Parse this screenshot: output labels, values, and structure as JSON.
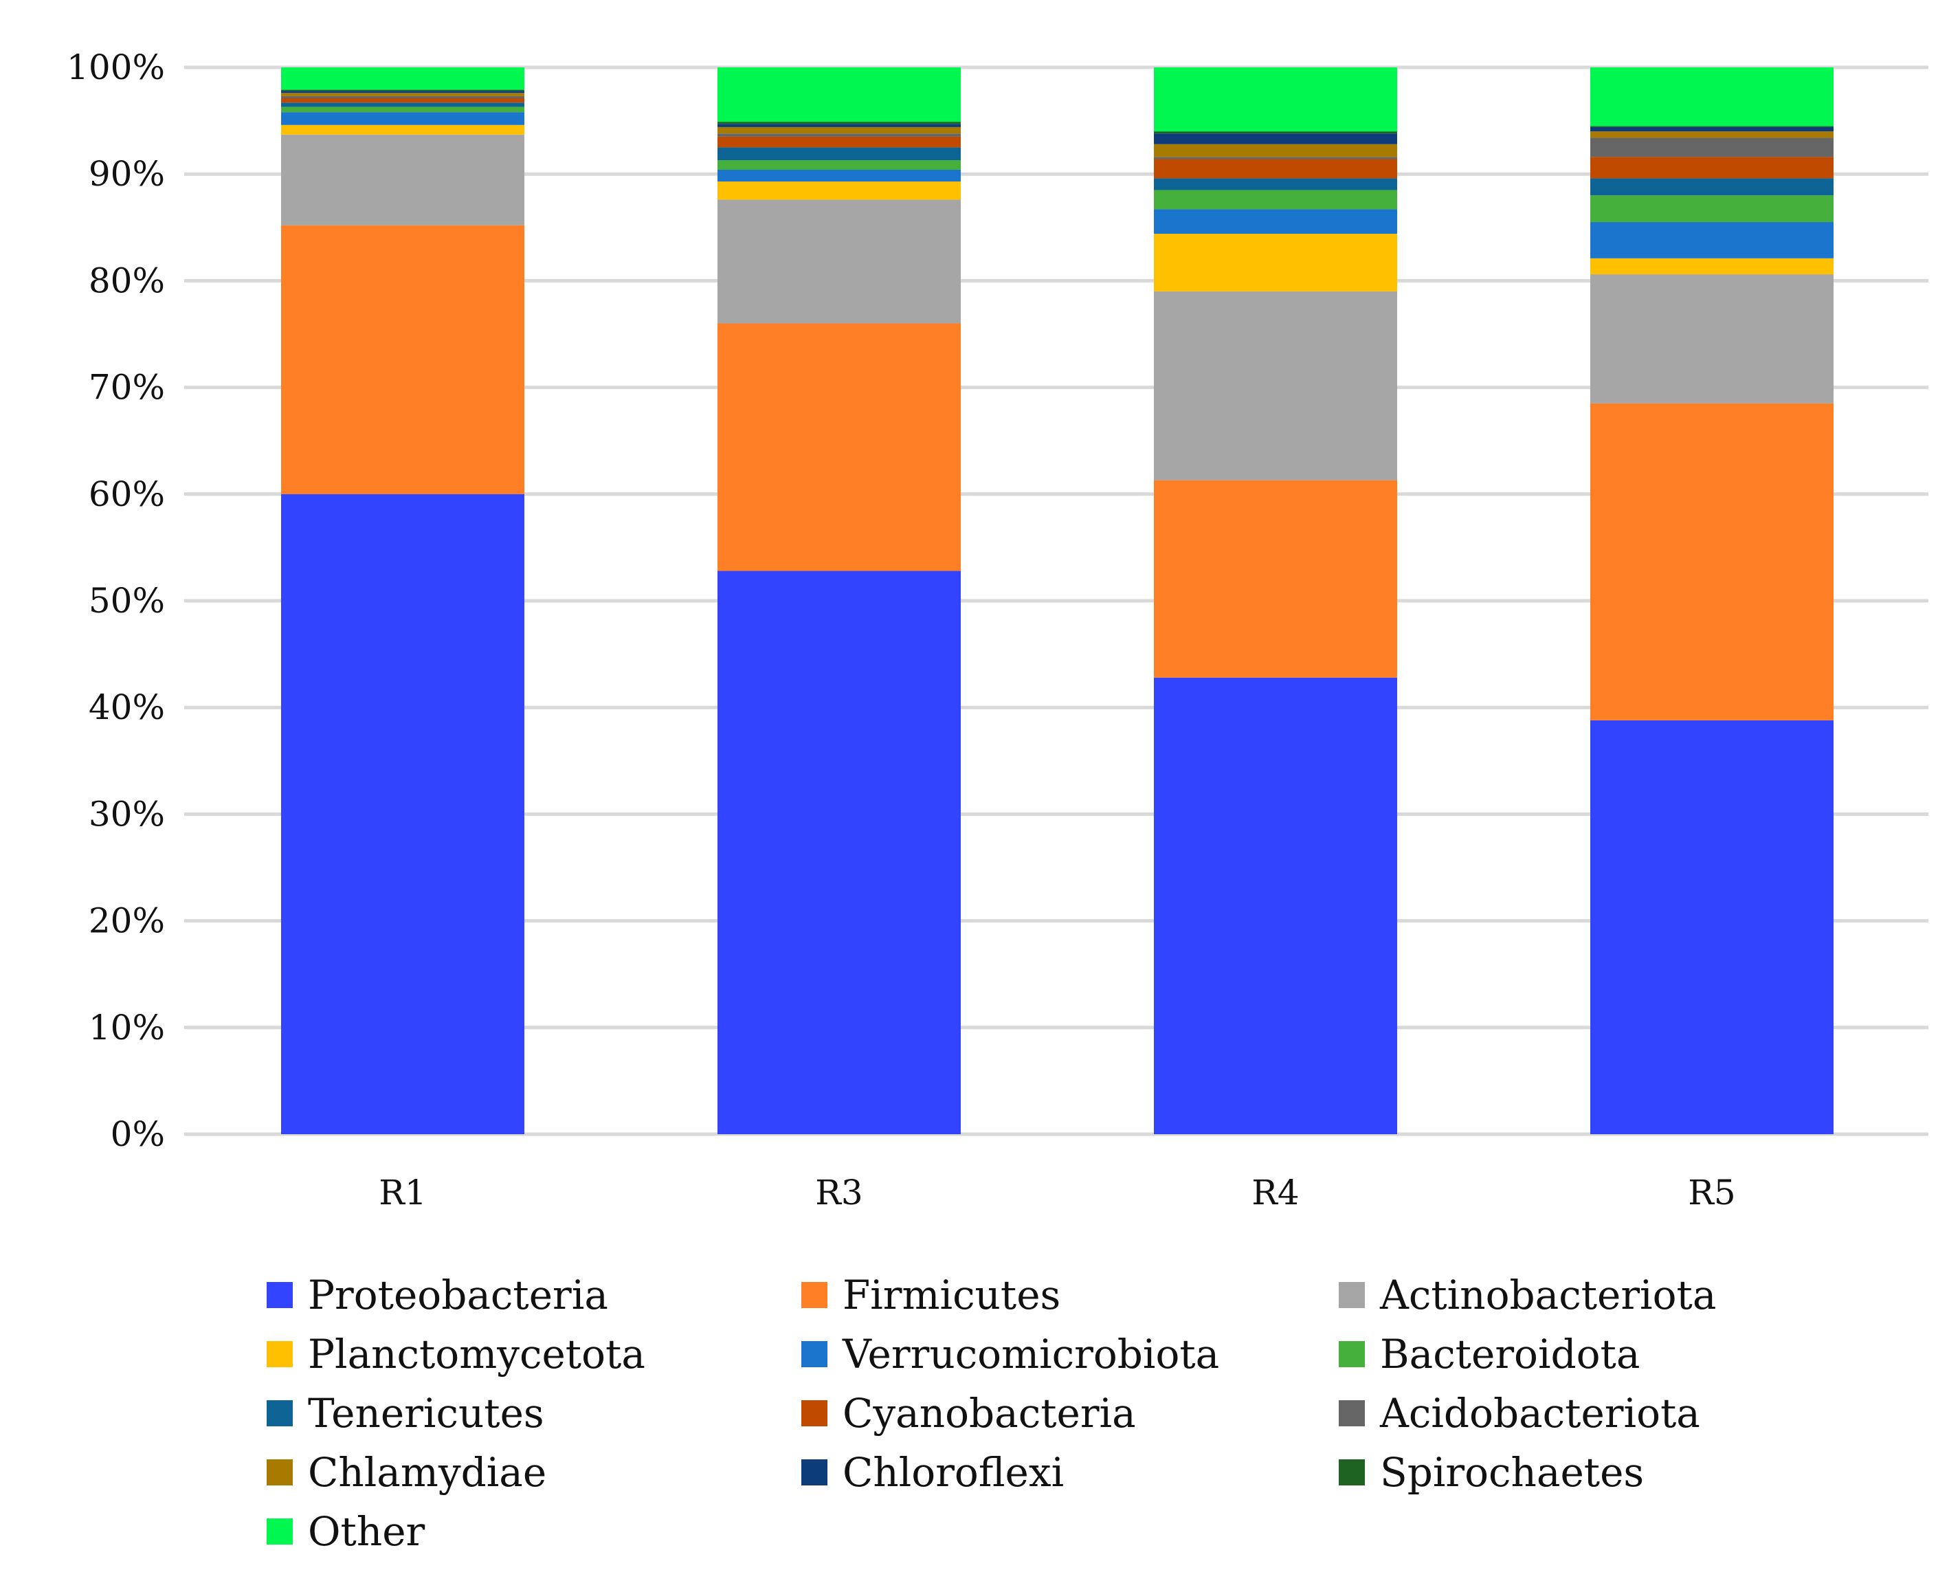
{
  "chart_data": {
    "type": "bar",
    "stacked": true,
    "title": "",
    "xlabel": "",
    "ylabel": "",
    "ylim": [
      0,
      100
    ],
    "yticks": [
      "0%",
      "10%",
      "20%",
      "30%",
      "40%",
      "50%",
      "60%",
      "70%",
      "80%",
      "90%",
      "100%"
    ],
    "yticks_values": [
      0,
      10,
      20,
      30,
      40,
      50,
      60,
      70,
      80,
      90,
      100
    ],
    "grid": true,
    "legend_position": "bottom",
    "categories": [
      "R1",
      "R3",
      "R4",
      "R5"
    ],
    "series": [
      {
        "name": "Proteobacteria",
        "color": "#3344FF",
        "values": [
          60.0,
          52.8,
          42.8,
          38.8
        ]
      },
      {
        "name": "Firmicutes",
        "color": "#FF7F27",
        "values": [
          25.2,
          23.2,
          18.5,
          29.7
        ]
      },
      {
        "name": "Actinobacteriota",
        "color": "#A6A6A6",
        "values": [
          8.5,
          11.6,
          17.7,
          12.1
        ]
      },
      {
        "name": "Planctomycetota",
        "color": "#FFC000",
        "values": [
          0.9,
          1.7,
          5.4,
          1.5
        ]
      },
      {
        "name": "Verrucomicrobiota",
        "color": "#1B75CC",
        "values": [
          1.2,
          1.1,
          2.3,
          3.4
        ]
      },
      {
        "name": "Bacteroidota",
        "color": "#45B03B",
        "values": [
          0.5,
          0.9,
          1.8,
          2.5
        ]
      },
      {
        "name": "Tenericutes",
        "color": "#0F6496",
        "values": [
          0.4,
          1.2,
          1.1,
          1.6
        ]
      },
      {
        "name": "Cyanobacteria",
        "color": "#C04A00",
        "values": [
          0.4,
          1.0,
          1.8,
          2.0
        ]
      },
      {
        "name": "Acidobacteriota",
        "color": "#666666",
        "values": [
          0.2,
          0.3,
          0.2,
          1.8
        ]
      },
      {
        "name": "Chlamydiae",
        "color": "#A87A00",
        "values": [
          0.3,
          0.6,
          1.2,
          0.6
        ]
      },
      {
        "name": "Chloroflexi",
        "color": "#0C3D7A",
        "values": [
          0.2,
          0.3,
          1.0,
          0.4
        ]
      },
      {
        "name": "Spirochaetes",
        "color": "#1E6322",
        "values": [
          0.1,
          0.2,
          0.2,
          0.1
        ]
      },
      {
        "name": "Other",
        "color": "#00F74F",
        "values": [
          2.1,
          5.1,
          6.0,
          5.5
        ]
      }
    ]
  }
}
